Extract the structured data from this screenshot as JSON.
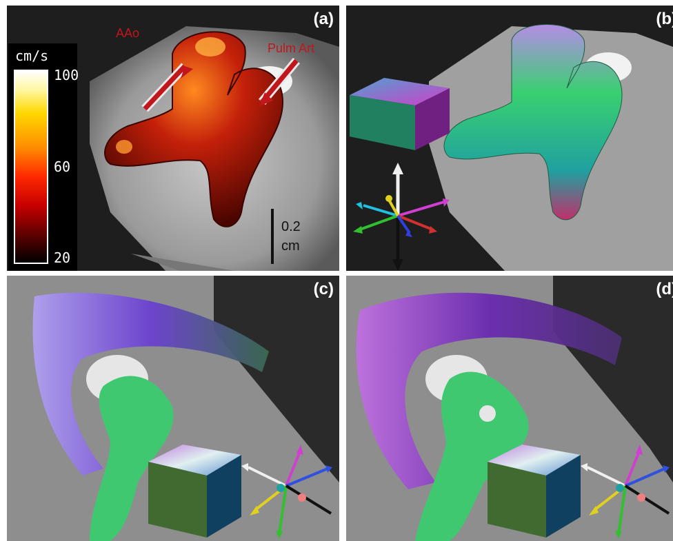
{
  "panels": {
    "a": {
      "label": "(a)"
    },
    "b": {
      "label": "(b)"
    },
    "c": {
      "label": "(c)"
    },
    "d": {
      "label": "(d)"
    }
  },
  "annotations": {
    "aao": "AAo",
    "pulm_art": "Pulm Art",
    "arrow_color": "#c0161c"
  },
  "colorbar": {
    "unit": "cm/s",
    "ticks": [
      "100",
      "60",
      "20"
    ],
    "colormap": "hot"
  },
  "scale_bar": {
    "value": "0.2",
    "unit": "cm"
  }
}
